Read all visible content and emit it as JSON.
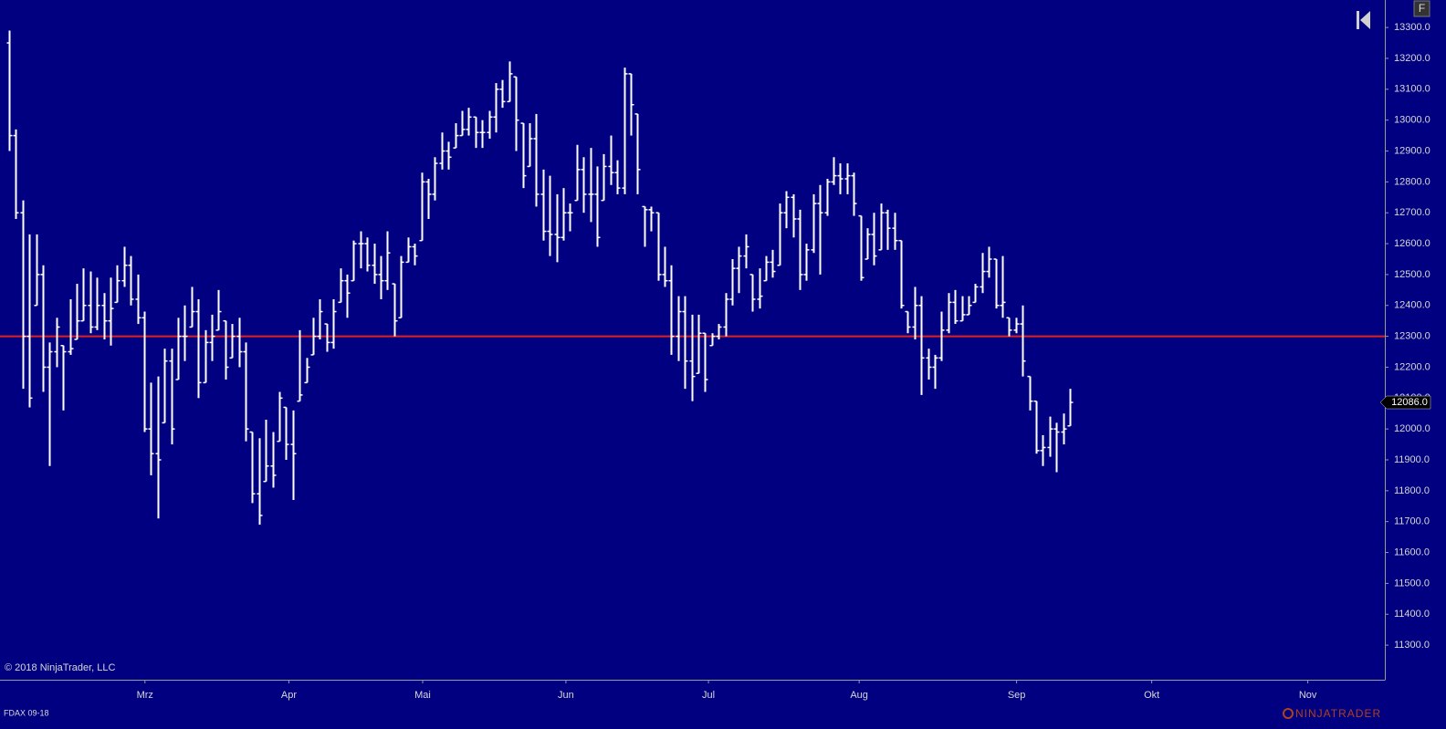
{
  "chart_data": {
    "type": "ohlc",
    "instrument": "FDAX 09-18",
    "copyright": "© 2018 NinjaTrader, LLC",
    "brand": "NINJATRADER",
    "button": "F",
    "bar_color": "#ffffff",
    "background": "#000080",
    "hline": {
      "value": 12300,
      "color": "#e02020"
    },
    "last_label": "12086.0",
    "x": [
      0,
      1,
      2,
      3,
      4,
      5,
      6,
      7,
      8,
      9,
      10,
      11,
      12,
      13,
      14,
      15,
      16,
      17,
      18,
      19,
      20,
      21,
      22,
      23,
      24,
      25,
      26,
      27,
      28,
      29,
      30,
      31,
      32,
      33,
      34,
      35,
      36,
      37,
      38,
      39,
      40,
      41,
      42,
      43,
      44,
      45,
      46,
      47,
      48,
      49,
      50,
      51,
      52,
      53,
      54,
      55,
      56,
      57,
      58,
      59,
      60,
      61,
      62,
      63,
      64,
      65,
      66,
      67,
      68,
      69,
      70,
      71,
      72,
      73,
      74,
      75,
      76,
      77,
      78,
      79,
      80,
      81,
      82,
      83,
      84,
      85,
      86,
      87,
      88,
      89,
      90,
      91,
      92,
      93,
      94,
      95,
      96,
      97,
      98,
      99,
      100,
      101,
      102,
      103,
      104,
      105,
      106,
      107,
      108,
      109,
      110,
      111,
      112,
      113,
      114,
      115,
      116,
      117,
      118,
      119,
      120,
      121,
      122,
      123,
      124,
      125,
      126,
      127,
      128,
      129,
      130,
      131,
      132,
      133,
      134,
      135,
      136,
      137,
      138,
      139,
      140,
      141,
      142,
      143,
      144,
      145,
      146,
      147,
      148,
      149,
      150,
      151,
      152,
      153,
      154,
      155,
      156,
      157
    ],
    "open": [
      13250,
      12950,
      12700,
      12300,
      12400,
      12500,
      12200,
      12250,
      12270,
      12250,
      12290,
      12350,
      12400,
      12330,
      12400,
      12350,
      12410,
      12480,
      12530,
      12420,
      12360,
      12000,
      11920,
      12020,
      12220,
      12160,
      12300,
      12330,
      12380,
      12150,
      12280,
      12320,
      12350,
      12230,
      12300,
      12250,
      11990,
      11790,
      11830,
      11880,
      11960,
      12070,
      11950,
      12090,
      12150,
      12240,
      12300,
      12340,
      12280,
      12410,
      12480,
      12480,
      12600,
      12600,
      12530,
      12500,
      12480,
      12470,
      12360,
      12540,
      12590,
      12610,
      12800,
      12760,
      12860,
      12900,
      12910,
      12950,
      12970,
      13010,
      12960,
      12960,
      13010,
      13100,
      13060,
      13140,
      12990,
      12850,
      12940,
      12760,
      12640,
      12630,
      12620,
      12700,
      12740,
      12840,
      12760,
      12760,
      12740,
      12850,
      12830,
      12780,
      13150,
      13020,
      12720,
      12710,
      12700,
      12500,
      12480,
      12300,
      12380,
      12220,
      12180,
      12310,
      12270,
      12300,
      12330,
      12420,
      12520,
      12560,
      12500,
      12420,
      12480,
      12540,
      12530,
      12700,
      12750,
      12680,
      12500,
      12580,
      12730,
      12700,
      12800,
      12820,
      12810,
      12820,
      12690,
      12550,
      12630,
      12580,
      12700,
      12650,
      12610,
      12380,
      12330,
      12400,
      12230,
      12200,
      12230,
      12320,
      12410,
      12350,
      12370,
      12410,
      12460,
      12510,
      12550,
      12400,
      12360,
      12320,
      12340,
      12170,
      12090,
      11930,
      11940,
      12000,
      11990,
      12010
    ],
    "high": [
      13290,
      12970,
      12740,
      12630,
      12630,
      12530,
      12280,
      12360,
      12270,
      12420,
      12470,
      12520,
      12510,
      12490,
      12440,
      12490,
      12530,
      12590,
      12560,
      12500,
      12380,
      12150,
      12170,
      12260,
      12260,
      12360,
      12400,
      12460,
      12420,
      12320,
      12370,
      12450,
      12350,
      12340,
      12360,
      12280,
      11990,
      11970,
      12030,
      11990,
      12120,
      12070,
      12060,
      12320,
      12230,
      12360,
      12420,
      12340,
      12420,
      12520,
      12500,
      12610,
      12640,
      12620,
      12600,
      12560,
      12640,
      12470,
      12560,
      12620,
      12600,
      12830,
      12810,
      12880,
      12960,
      12930,
      12990,
      13030,
      13040,
      13010,
      13000,
      13030,
      13120,
      13130,
      13190,
      13140,
      12990,
      12990,
      13020,
      12840,
      12820,
      12760,
      12780,
      12730,
      12920,
      12880,
      12910,
      12850,
      12890,
      12950,
      12870,
      13170,
      13150,
      13020,
      12720,
      12720,
      12700,
      12590,
      12530,
      12430,
      12430,
      12370,
      12370,
      12310,
      12310,
      12340,
      12440,
      12550,
      12590,
      12630,
      12500,
      12520,
      12560,
      12580,
      12730,
      12770,
      12760,
      12710,
      12600,
      12760,
      12790,
      12810,
      12880,
      12860,
      12860,
      12830,
      12690,
      12650,
      12700,
      12730,
      12710,
      12700,
      12610,
      12380,
      12460,
      12430,
      12260,
      12240,
      12380,
      12440,
      12450,
      12430,
      12430,
      12470,
      12570,
      12590,
      12550,
      12560,
      12360,
      12360,
      12400,
      12170,
      12090,
      11980,
      12040,
      12020,
      12050,
      12130
    ],
    "low": [
      12900,
      12680,
      12130,
      12070,
      12400,
      12120,
      11880,
      12200,
      12060,
      12240,
      12290,
      12350,
      12310,
      12320,
      12290,
      12270,
      12410,
      12460,
      12400,
      12340,
      11990,
      11850,
      11710,
      12020,
      11950,
      12160,
      12220,
      12330,
      12100,
      12150,
      12220,
      12320,
      12160,
      12230,
      12200,
      11960,
      11760,
      11690,
      11830,
      11810,
      11960,
      11900,
      11770,
      12090,
      12150,
      12240,
      12290,
      12250,
      12260,
      12410,
      12360,
      12480,
      12520,
      12510,
      12470,
      12420,
      12450,
      12300,
      12360,
      12540,
      12530,
      12610,
      12680,
      12740,
      12840,
      12840,
      12910,
      12950,
      12950,
      12910,
      12910,
      12940,
      12960,
      13040,
      13060,
      12900,
      12780,
      12850,
      12720,
      12610,
      12560,
      12540,
      12610,
      12640,
      12740,
      12700,
      12670,
      12590,
      12740,
      12790,
      12760,
      12760,
      12950,
      12760,
      12590,
      12640,
      12480,
      12460,
      12240,
      12220,
      12130,
      12090,
      12180,
      12120,
      12270,
      12290,
      12300,
      12400,
      12440,
      12520,
      12380,
      12390,
      12480,
      12490,
      12530,
      12650,
      12620,
      12450,
      12480,
      12570,
      12500,
      12690,
      12790,
      12760,
      12760,
      12690,
      12480,
      12550,
      12530,
      12580,
      12580,
      12580,
      12390,
      12310,
      12290,
      12110,
      12160,
      12130,
      12220,
      12310,
      12340,
      12350,
      12370,
      12410,
      12440,
      12490,
      12390,
      12360,
      12300,
      12310,
      12170,
      12060,
      11920,
      11880,
      11910,
      11860,
      11950,
      12010
    ],
    "close": [
      12950,
      12700,
      12300,
      12100,
      12500,
      12200,
      12250,
      12330,
      12250,
      12260,
      12350,
      12400,
      12330,
      12400,
      12350,
      12390,
      12480,
      12530,
      12420,
      12360,
      12000,
      11920,
      11900,
      12220,
      12000,
      12300,
      12300,
      12380,
      12150,
      12280,
      12300,
      12380,
      12200,
      12300,
      12250,
      12000,
      11790,
      11720,
      11880,
      11850,
      12100,
      11950,
      11920,
      12110,
      12200,
      12300,
      12380,
      12280,
      12380,
      12480,
      12440,
      12600,
      12600,
      12530,
      12500,
      12480,
      12570,
      12350,
      12540,
      12590,
      12560,
      12800,
      12760,
      12860,
      12900,
      12880,
      12950,
      12970,
      13010,
      12960,
      12960,
      13010,
      13100,
      13060,
      13150,
      13000,
      12820,
      12940,
      12760,
      12640,
      12630,
      12620,
      12700,
      12700,
      12840,
      12760,
      12760,
      12620,
      12850,
      12830,
      12780,
      13150,
      13050,
      12840,
      12710,
      12700,
      12500,
      12480,
      12300,
      12380,
      12220,
      12170,
      12310,
      12160,
      12300,
      12330,
      12420,
      12520,
      12560,
      12590,
      12420,
      12430,
      12540,
      12510,
      12700,
      12750,
      12680,
      12500,
      12580,
      12730,
      12700,
      12800,
      12820,
      12810,
      12820,
      12730,
      12490,
      12630,
      12560,
      12700,
      12650,
      12610,
      12400,
      12330,
      12400,
      12230,
      12200,
      12230,
      12320,
      12410,
      12350,
      12370,
      12400,
      12460,
      12510,
      12550,
      12400,
      12410,
      12320,
      12340,
      12220,
      12090,
      11930,
      11940,
      12000,
      11990,
      12000,
      12086
    ],
    "xlim": [
      -1.35,
      203.6
    ],
    "xticks": [
      {
        "value": 20.1,
        "label": "Mrz"
      },
      {
        "value": 41.4,
        "label": "Apr"
      },
      {
        "value": 61.2,
        "label": "Mai"
      },
      {
        "value": 82.4,
        "label": "Jun"
      },
      {
        "value": 103.5,
        "label": "Jul"
      },
      {
        "value": 125.8,
        "label": "Aug"
      },
      {
        "value": 149.1,
        "label": "Sep"
      },
      {
        "value": 169.1,
        "label": "Okt"
      },
      {
        "value": 192.2,
        "label": "Nov"
      }
    ],
    "ylim": [
      11188,
      13389
    ],
    "yticks": [
      {
        "value": 11300,
        "label": "11300.0"
      },
      {
        "value": 11400,
        "label": "11400.0"
      },
      {
        "value": 11500,
        "label": "11500.0"
      },
      {
        "value": 11600,
        "label": "11600.0"
      },
      {
        "value": 11700,
        "label": "11700.0"
      },
      {
        "value": 11800,
        "label": "11800.0"
      },
      {
        "value": 11900,
        "label": "11900.0"
      },
      {
        "value": 12000,
        "label": "12000.0"
      },
      {
        "value": 12100,
        "label": "12100.0"
      },
      {
        "value": 12200,
        "label": "12200.0"
      },
      {
        "value": 12300,
        "label": "12300.0"
      },
      {
        "value": 12400,
        "label": "12400.0"
      },
      {
        "value": 12500,
        "label": "12500.0"
      },
      {
        "value": 12600,
        "label": "12600.0"
      },
      {
        "value": 12700,
        "label": "12700.0"
      },
      {
        "value": 12800,
        "label": "12800.0"
      },
      {
        "value": 12900,
        "label": "12900.0"
      },
      {
        "value": 13000,
        "label": "13000.0"
      },
      {
        "value": 13100,
        "label": "13100.0"
      },
      {
        "value": 13200,
        "label": "13200.0"
      },
      {
        "value": 13300,
        "label": "13300.0"
      }
    ]
  }
}
